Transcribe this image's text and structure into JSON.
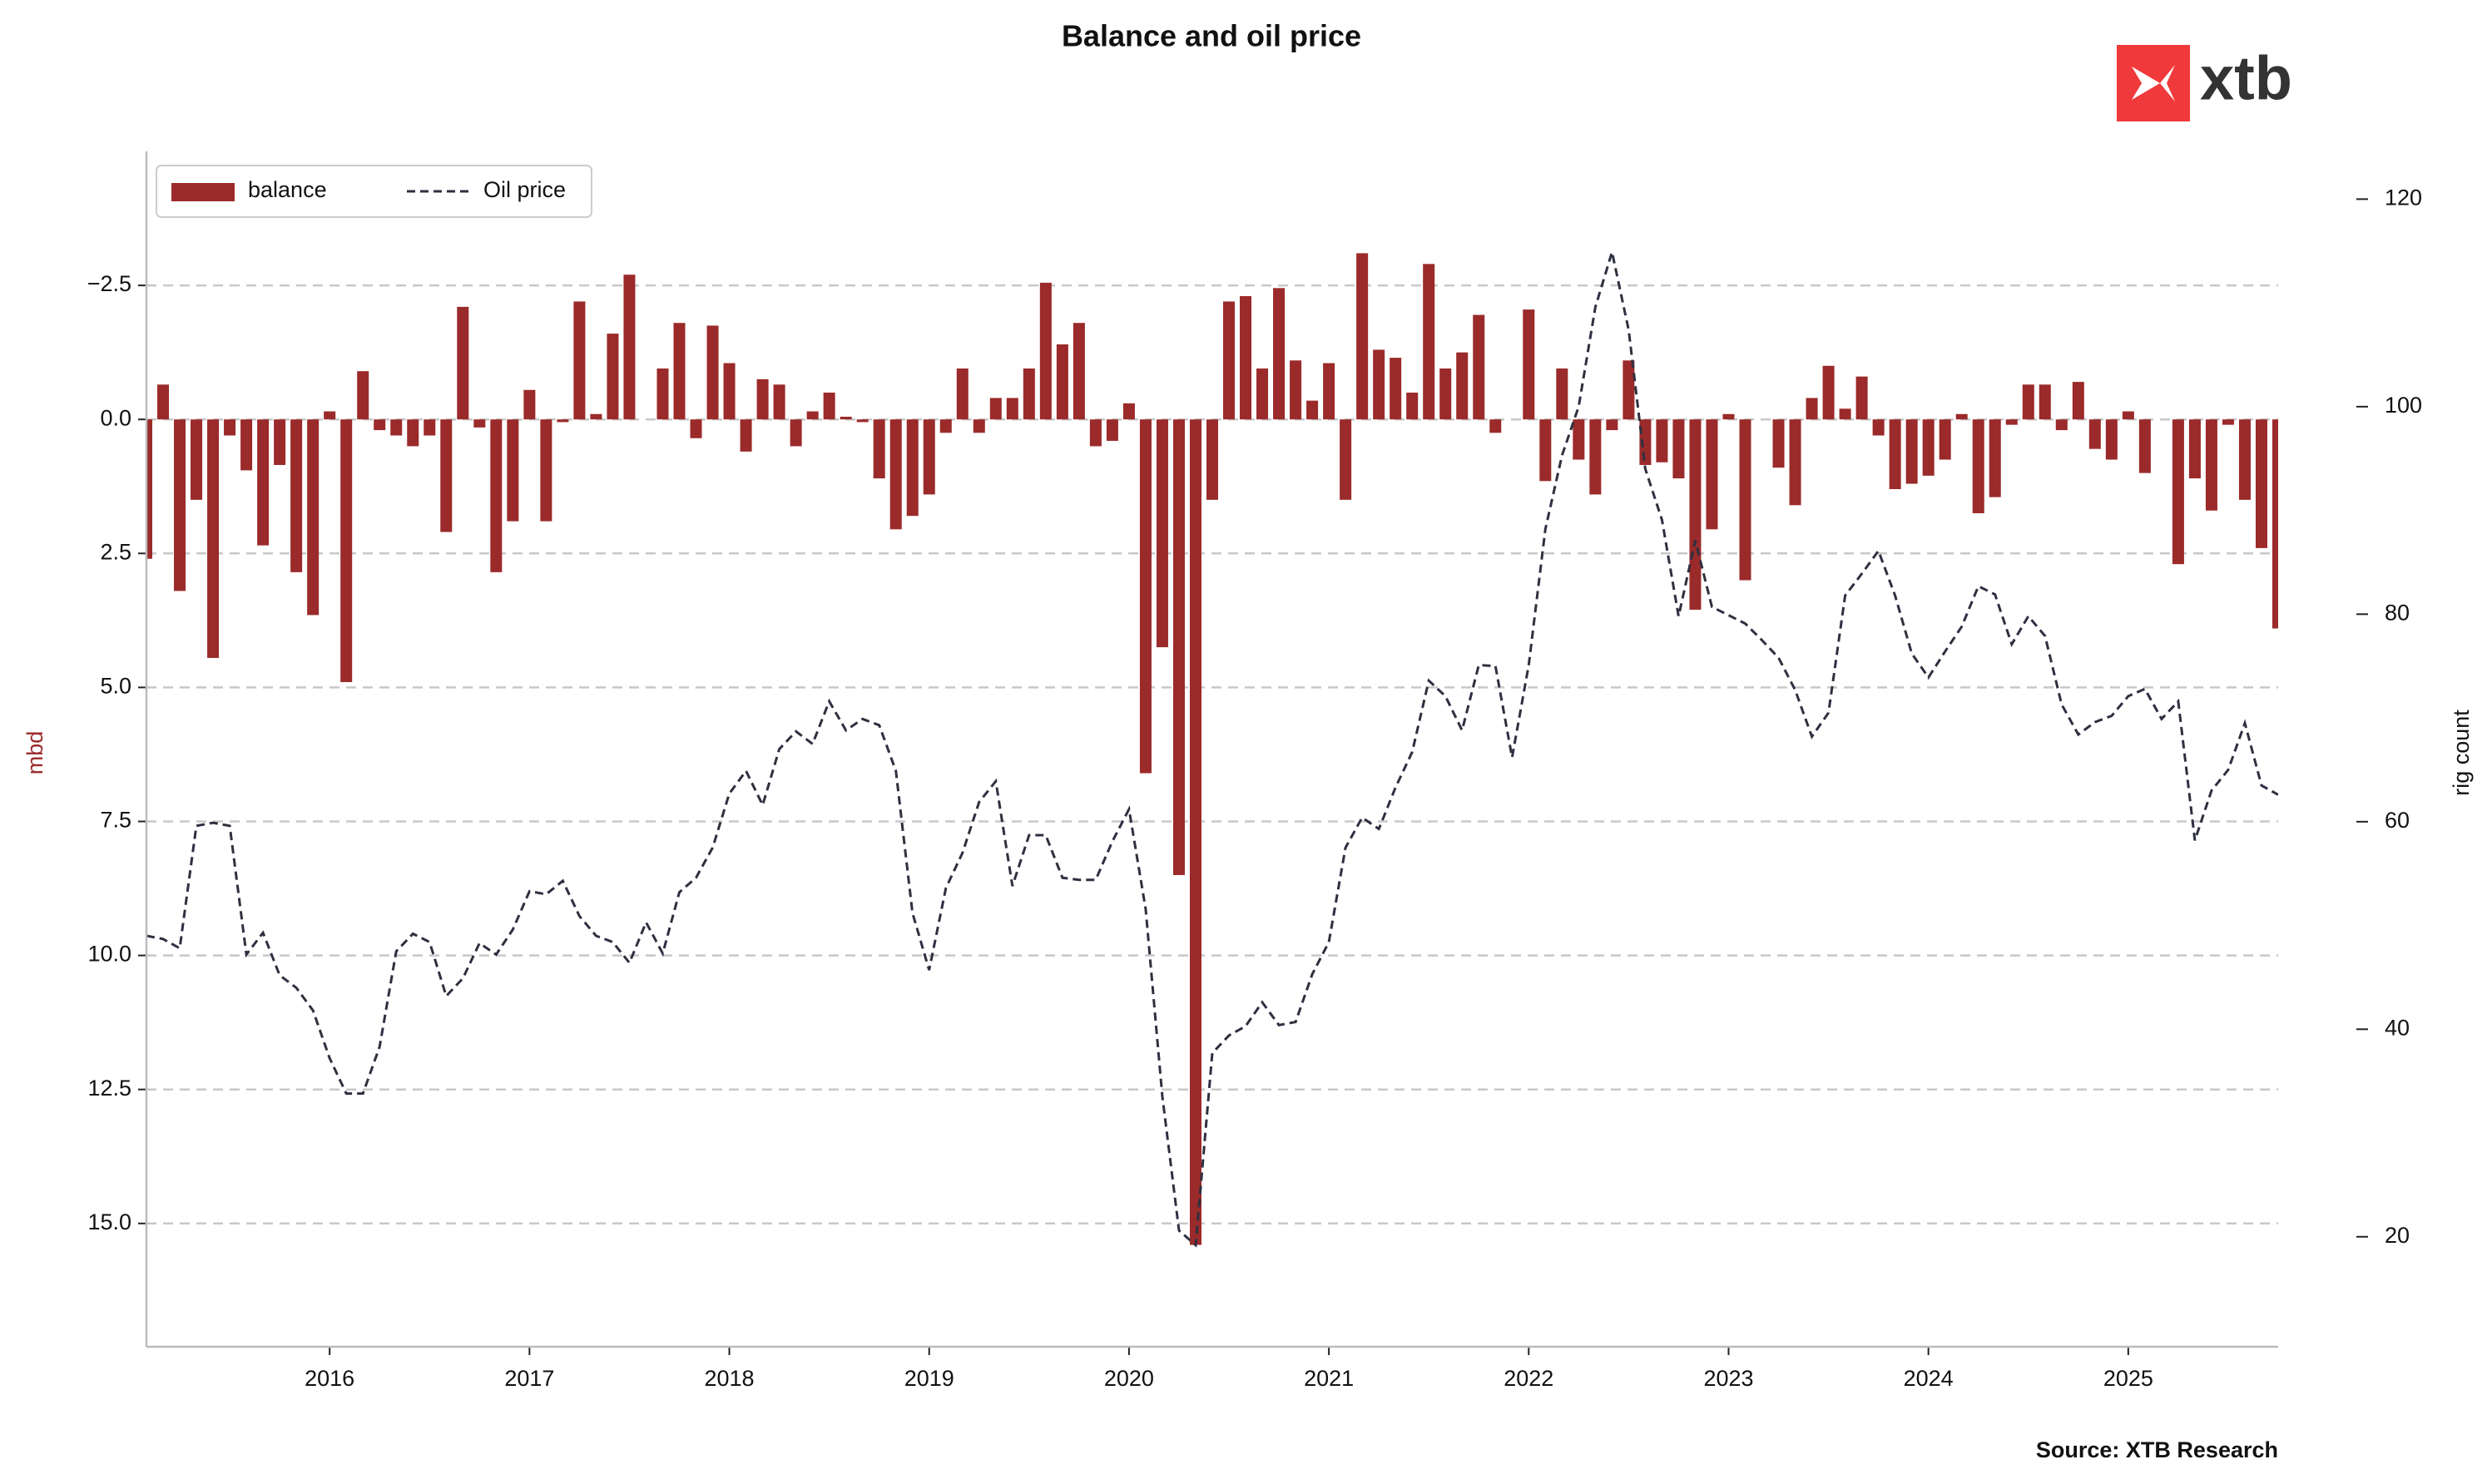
{
  "chart_data": {
    "type": "bar",
    "title": "Balance and oil price",
    "logo": "xtb",
    "source": "Source: XTB Research",
    "ylabel": "mbd",
    "y2label": "rig count",
    "legend": "upper left",
    "grid": true,
    "x": [
      "2015-02",
      "2015-03",
      "2015-04",
      "2015-05",
      "2015-06",
      "2015-07",
      "2015-08",
      "2015-09",
      "2015-10",
      "2015-11",
      "2015-12",
      "2016-01",
      "2016-02",
      "2016-03",
      "2016-04",
      "2016-05",
      "2016-06",
      "2016-07",
      "2016-08",
      "2016-09",
      "2016-10",
      "2016-11",
      "2016-12",
      "2017-01",
      "2017-02",
      "2017-03",
      "2017-04",
      "2017-05",
      "2017-06",
      "2017-07",
      "2017-08",
      "2017-09",
      "2017-10",
      "2017-11",
      "2017-12",
      "2018-01",
      "2018-02",
      "2018-03",
      "2018-04",
      "2018-05",
      "2018-06",
      "2018-07",
      "2018-08",
      "2018-09",
      "2018-10",
      "2018-11",
      "2018-12",
      "2019-01",
      "2019-02",
      "2019-03",
      "2019-04",
      "2019-05",
      "2019-06",
      "2019-07",
      "2019-08",
      "2019-09",
      "2019-10",
      "2019-11",
      "2019-12",
      "2020-01",
      "2020-02",
      "2020-03",
      "2020-04",
      "2020-05",
      "2020-06",
      "2020-07",
      "2020-08",
      "2020-09",
      "2020-10",
      "2020-11",
      "2020-12",
      "2021-01",
      "2021-02",
      "2021-03",
      "2021-04",
      "2021-05",
      "2021-06",
      "2021-07",
      "2021-08",
      "2021-09",
      "2021-10",
      "2021-11",
      "2021-12",
      "2022-01",
      "2022-02",
      "2022-03",
      "2022-04",
      "2022-05",
      "2022-06",
      "2022-07",
      "2022-08",
      "2022-09",
      "2022-10",
      "2022-11",
      "2022-12",
      "2023-01",
      "2023-02",
      "2023-03",
      "2023-04",
      "2023-05",
      "2023-06",
      "2023-07",
      "2023-08",
      "2023-09",
      "2023-10",
      "2023-11",
      "2023-12",
      "2024-01",
      "2024-02",
      "2024-03",
      "2024-04",
      "2024-05",
      "2024-06",
      "2024-07",
      "2024-08",
      "2024-09",
      "2024-10",
      "2024-11",
      "2024-12",
      "2025-01",
      "2025-02",
      "2025-03",
      "2025-04",
      "2025-05",
      "2025-06",
      "2025-07",
      "2025-08",
      "2025-09",
      "2025-10"
    ],
    "xlim": [
      "2015-02",
      "2025-10"
    ],
    "xticks": [
      2016,
      2017,
      2018,
      2019,
      2020,
      2021,
      2022,
      2023,
      2024,
      2025
    ],
    "ylim": [
      17.3,
      -5.0
    ],
    "yticks": [
      {
        "value": -2.5,
        "label": "−2.5"
      },
      {
        "value": 0,
        "label": "0.0"
      },
      2.5,
      {
        "value": 5,
        "label": "5.0"
      },
      7.5,
      {
        "value": 10,
        "label": "10.0"
      },
      12.5,
      {
        "value": 15,
        "label": "15.0"
      }
    ],
    "y2lim": [
      9.4,
      124.6
    ],
    "y2ticks": [
      20,
      40,
      60,
      80,
      100,
      120
    ],
    "series": [
      {
        "name": "balance",
        "type": "bar",
        "color": "#9b2a2a",
        "values": [
          2.6,
          -0.65,
          3.2,
          1.5,
          4.45,
          0.3,
          0.95,
          2.35,
          0.85,
          2.85,
          3.65,
          -0.15,
          4.9,
          -0.9,
          0.2,
          0.3,
          0.5,
          0.3,
          2.1,
          -2.1,
          0.15,
          2.85,
          1.9,
          -0.55,
          1.9,
          0.05,
          -2.2,
          -0.1,
          -1.6,
          -2.7,
          0.0,
          -0.95,
          -1.8,
          0.35,
          -1.75,
          -1.05,
          0.6,
          -0.75,
          -0.65,
          0.5,
          -0.15,
          -0.5,
          -0.05,
          0.05,
          1.1,
          2.05,
          1.8,
          1.4,
          0.25,
          -0.95,
          0.25,
          -0.4,
          -0.4,
          -0.95,
          -2.55,
          -1.4,
          -1.8,
          0.5,
          0.4,
          -0.3,
          6.6,
          4.25,
          8.5,
          15.4,
          1.5,
          -2.2,
          -2.3,
          -0.95,
          -2.45,
          -1.1,
          -0.35,
          -1.05,
          1.5,
          -3.1,
          -1.3,
          -1.15,
          -0.5,
          -2.9,
          -0.95,
          -1.25,
          -1.95,
          0.25,
          0.0,
          -2.05,
          1.15,
          -0.95,
          0.75,
          1.4,
          0.2,
          -1.1,
          0.85,
          0.8,
          1.1,
          3.55,
          2.05,
          -0.1,
          3.0,
          0.0,
          0.9,
          1.6,
          -0.4,
          -1.0,
          -0.2,
          -0.8,
          0.3,
          1.3,
          1.2,
          1.05,
          0.75,
          -0.1,
          1.75,
          1.45,
          0.1,
          -0.65,
          -0.65,
          0.2,
          -0.7,
          0.55,
          0.75,
          -0.15,
          1.0,
          0.0,
          2.7,
          1.1,
          1.7,
          0.1,
          1.5,
          2.4,
          3.9
        ]
      },
      {
        "name": "Oil price",
        "type": "line",
        "axis": "y2",
        "color": "#2e3040",
        "values": [
          49.0,
          48.7,
          47.8,
          59.6,
          59.9,
          59.6,
          47.2,
          49.3,
          45.2,
          44.0,
          41.8,
          37.2,
          33.8,
          33.8,
          38.3,
          47.5,
          49.2,
          48.4,
          43.2,
          44.9,
          48.3,
          47.2,
          49.6,
          53.3,
          53.0,
          54.3,
          50.9,
          49.0,
          48.4,
          46.4,
          50.3,
          47.3,
          53.2,
          54.6,
          57.5,
          62.7,
          64.9,
          61.6,
          67.0,
          68.7,
          67.5,
          71.6,
          68.8,
          69.9,
          69.3,
          64.9,
          51.2,
          45.7,
          53.6,
          57.0,
          61.9,
          63.9,
          53.8,
          58.7,
          58.7,
          54.6,
          54.4,
          54.4,
          58.1,
          61.2,
          51.6,
          33.5,
          20.6,
          19.2,
          37.7,
          39.4,
          40.3,
          42.6,
          40.4,
          40.7,
          45.3,
          48.4,
          57.5,
          60.4,
          59.3,
          63.3,
          66.7,
          73.6,
          72.1,
          68.8,
          75.1,
          75.0,
          66.2,
          75.1,
          88.2,
          95.3,
          100.0,
          109.6,
          114.9,
          107.4,
          94.0,
          89.1,
          79.8,
          87.1,
          80.7,
          79.9,
          79.1,
          77.5,
          75.8,
          72.7,
          68.2,
          70.5,
          81.8,
          83.9,
          86.1,
          81.8,
          76.2,
          73.9,
          76.4,
          78.8,
          82.7,
          81.9,
          77.1,
          79.8,
          77.9,
          71.3,
          68.4,
          69.6,
          70.2,
          72.1,
          72.8,
          69.9,
          71.6,
          58.2,
          63.0,
          65.0,
          69.5,
          63.5,
          62.6
        ]
      }
    ]
  }
}
